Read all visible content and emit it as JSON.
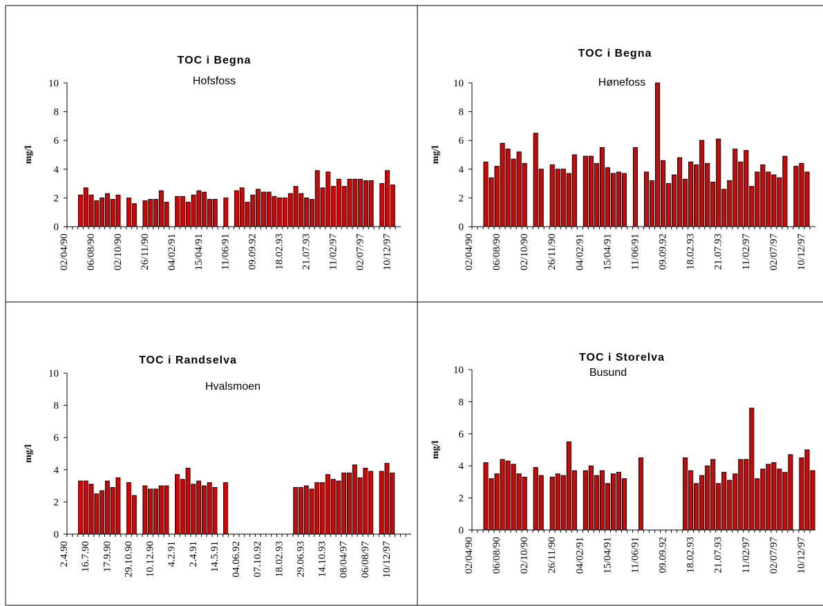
{
  "chart_data": [
    {
      "type": "bar",
      "title": "TOC i Begna",
      "subtitle": "Hofsfoss",
      "y_label": "mg/l",
      "color": "#dd0000",
      "ylim": [
        0,
        10
      ],
      "yticks": [
        0,
        2,
        4,
        6,
        8,
        10
      ],
      "categories": [
        "02/04/90",
        null,
        null,
        null,
        null,
        "06/08/90",
        null,
        null,
        null,
        null,
        "02/10/90",
        null,
        null,
        null,
        null,
        "26/11/90",
        null,
        null,
        null,
        null,
        "04/02/91",
        null,
        null,
        null,
        null,
        "15/04/91",
        null,
        null,
        null,
        null,
        "11/06/91",
        null,
        null,
        null,
        null,
        "09.09.92",
        null,
        null,
        null,
        null,
        "18.02.93",
        null,
        null,
        null,
        null,
        "21.07.93",
        null,
        null,
        null,
        null,
        "11/02/97",
        null,
        null,
        null,
        null,
        "02/07/97",
        null,
        null,
        null,
        null,
        "10/12/97",
        null
      ],
      "values": [
        null,
        null,
        2.2,
        2.7,
        2.2,
        1.8,
        2.0,
        2.3,
        1.9,
        2.2,
        null,
        2.0,
        1.6,
        null,
        1.8,
        1.9,
        1.9,
        2.5,
        1.7,
        null,
        2.1,
        2.1,
        1.7,
        2.2,
        2.5,
        2.4,
        1.9,
        1.9,
        null,
        2.0,
        null,
        2.5,
        2.7,
        1.7,
        2.2,
        2.6,
        2.4,
        2.4,
        2.1,
        2.0,
        2.0,
        2.3,
        2.8,
        2.3,
        2.0,
        1.9,
        3.9,
        2.7,
        3.8,
        2.8,
        3.3,
        2.8,
        3.3,
        3.3,
        3.3,
        3.2,
        3.2,
        null,
        3.0,
        3.9,
        2.9,
        null
      ]
    },
    {
      "type": "bar",
      "title": "TOC i Begna",
      "subtitle": "Hønefoss",
      "y_label": "mg/l",
      "color": "#dd0000",
      "ylim": [
        0,
        10
      ],
      "yticks": [
        0,
        2,
        4,
        6,
        8,
        10
      ],
      "categories": [
        "02/04/90",
        null,
        null,
        null,
        null,
        "06/08/90",
        null,
        null,
        null,
        null,
        "02/10/90",
        null,
        null,
        null,
        null,
        "26/11/90",
        null,
        null,
        null,
        null,
        "04/02/91",
        null,
        null,
        null,
        null,
        "15/04/91",
        null,
        null,
        null,
        null,
        "11/06/91",
        null,
        null,
        null,
        null,
        "09.09.92",
        null,
        null,
        null,
        null,
        "18.02.93",
        null,
        null,
        null,
        null,
        "21.07.93",
        null,
        null,
        null,
        null,
        "11/02/97",
        null,
        null,
        null,
        null,
        "02/07/97",
        null,
        null,
        null,
        null,
        "10/12/97",
        null
      ],
      "values": [
        null,
        null,
        4.5,
        3.4,
        4.2,
        5.8,
        5.4,
        4.7,
        5.2,
        4.4,
        null,
        6.5,
        4.0,
        null,
        4.3,
        4.0,
        4.0,
        3.7,
        5.0,
        null,
        4.9,
        4.9,
        4.4,
        5.5,
        4.1,
        3.7,
        3.8,
        3.7,
        null,
        5.5,
        null,
        3.8,
        3.2,
        10.0,
        4.6,
        3.0,
        3.6,
        4.8,
        3.3,
        4.5,
        4.3,
        6.0,
        4.4,
        3.1,
        6.1,
        2.6,
        3.2,
        5.4,
        4.5,
        5.3,
        2.8,
        3.8,
        4.3,
        3.8,
        3.6,
        3.4,
        4.9,
        null,
        4.2,
        4.4,
        3.8,
        null
      ]
    },
    {
      "type": "bar",
      "title": "TOC i Randselva",
      "subtitle": "Hvalsmoen",
      "y_label": "mg/l",
      "color": "#dd0000",
      "ylim": [
        0,
        10
      ],
      "yticks": [
        0,
        2,
        4,
        6,
        8,
        10
      ],
      "categories": [
        "2.4.90",
        null,
        null,
        null,
        "16.7.90",
        null,
        null,
        null,
        "17.9.90",
        null,
        null,
        null,
        "29.10.90",
        null,
        null,
        null,
        "10.12.90",
        null,
        null,
        null,
        "4.2.91",
        null,
        null,
        null,
        "2.4.91",
        null,
        null,
        null,
        "14.5.91",
        null,
        null,
        null,
        "04.06.92",
        null,
        null,
        null,
        "07.10.92",
        null,
        null,
        null,
        "18.02.93",
        null,
        null,
        null,
        "29.06.93",
        null,
        null,
        null,
        "14.10.93",
        null,
        null,
        null,
        "08/04/97",
        null,
        null,
        null,
        "06/08/97",
        null,
        null,
        null,
        "10/12/97",
        null,
        null,
        null
      ],
      "values": [
        null,
        null,
        3.3,
        3.3,
        3.1,
        2.5,
        2.7,
        3.3,
        2.9,
        3.5,
        null,
        3.2,
        2.4,
        null,
        3.0,
        2.8,
        2.8,
        3.0,
        3.0,
        null,
        3.7,
        3.4,
        4.1,
        3.1,
        3.3,
        3.0,
        3.2,
        2.9,
        null,
        3.2,
        null,
        null,
        null,
        null,
        null,
        null,
        null,
        null,
        null,
        null,
        null,
        null,
        2.9,
        2.9,
        3.0,
        2.8,
        3.2,
        3.2,
        3.7,
        3.4,
        3.3,
        3.8,
        3.8,
        4.3,
        3.5,
        4.1,
        3.9,
        null,
        3.9,
        4.4,
        3.8,
        null,
        null,
        null
      ]
    },
    {
      "type": "bar",
      "title": "TOC i Storelva",
      "subtitle": "Busund",
      "y_label": "mg/l",
      "color": "#dd0000",
      "ylim": [
        0,
        10
      ],
      "yticks": [
        0,
        2,
        4,
        6,
        8,
        10
      ],
      "categories": [
        "02/04/90",
        null,
        null,
        null,
        null,
        "06/08/90",
        null,
        null,
        null,
        null,
        "02/10/90",
        null,
        null,
        null,
        null,
        "26/11/90",
        null,
        null,
        null,
        null,
        "04/02/91",
        null,
        null,
        null,
        null,
        "15/04/91",
        null,
        null,
        null,
        null,
        "11/06/91",
        null,
        null,
        null,
        null,
        "09.09.92",
        null,
        null,
        null,
        null,
        "18.02.93",
        null,
        null,
        null,
        null,
        "21.07.93",
        null,
        null,
        null,
        null,
        "11/02/97",
        null,
        null,
        null,
        null,
        "02/07/97",
        null,
        null,
        null,
        null,
        "10/12/97",
        null
      ],
      "values": [
        null,
        null,
        4.2,
        3.2,
        3.5,
        4.4,
        4.3,
        4.1,
        3.5,
        3.3,
        null,
        3.9,
        3.4,
        null,
        3.3,
        3.5,
        3.4,
        5.5,
        3.7,
        null,
        3.7,
        4.0,
        3.4,
        3.7,
        2.9,
        3.5,
        3.6,
        3.2,
        null,
        null,
        4.5,
        null,
        null,
        null,
        null,
        null,
        null,
        null,
        4.5,
        3.7,
        2.9,
        3.4,
        4.0,
        4.4,
        2.9,
        3.6,
        3.1,
        3.5,
        4.4,
        4.4,
        7.6,
        3.2,
        3.8,
        4.1,
        4.2,
        3.8,
        3.6,
        4.7,
        null,
        4.5,
        5.0,
        3.7
      ]
    }
  ]
}
